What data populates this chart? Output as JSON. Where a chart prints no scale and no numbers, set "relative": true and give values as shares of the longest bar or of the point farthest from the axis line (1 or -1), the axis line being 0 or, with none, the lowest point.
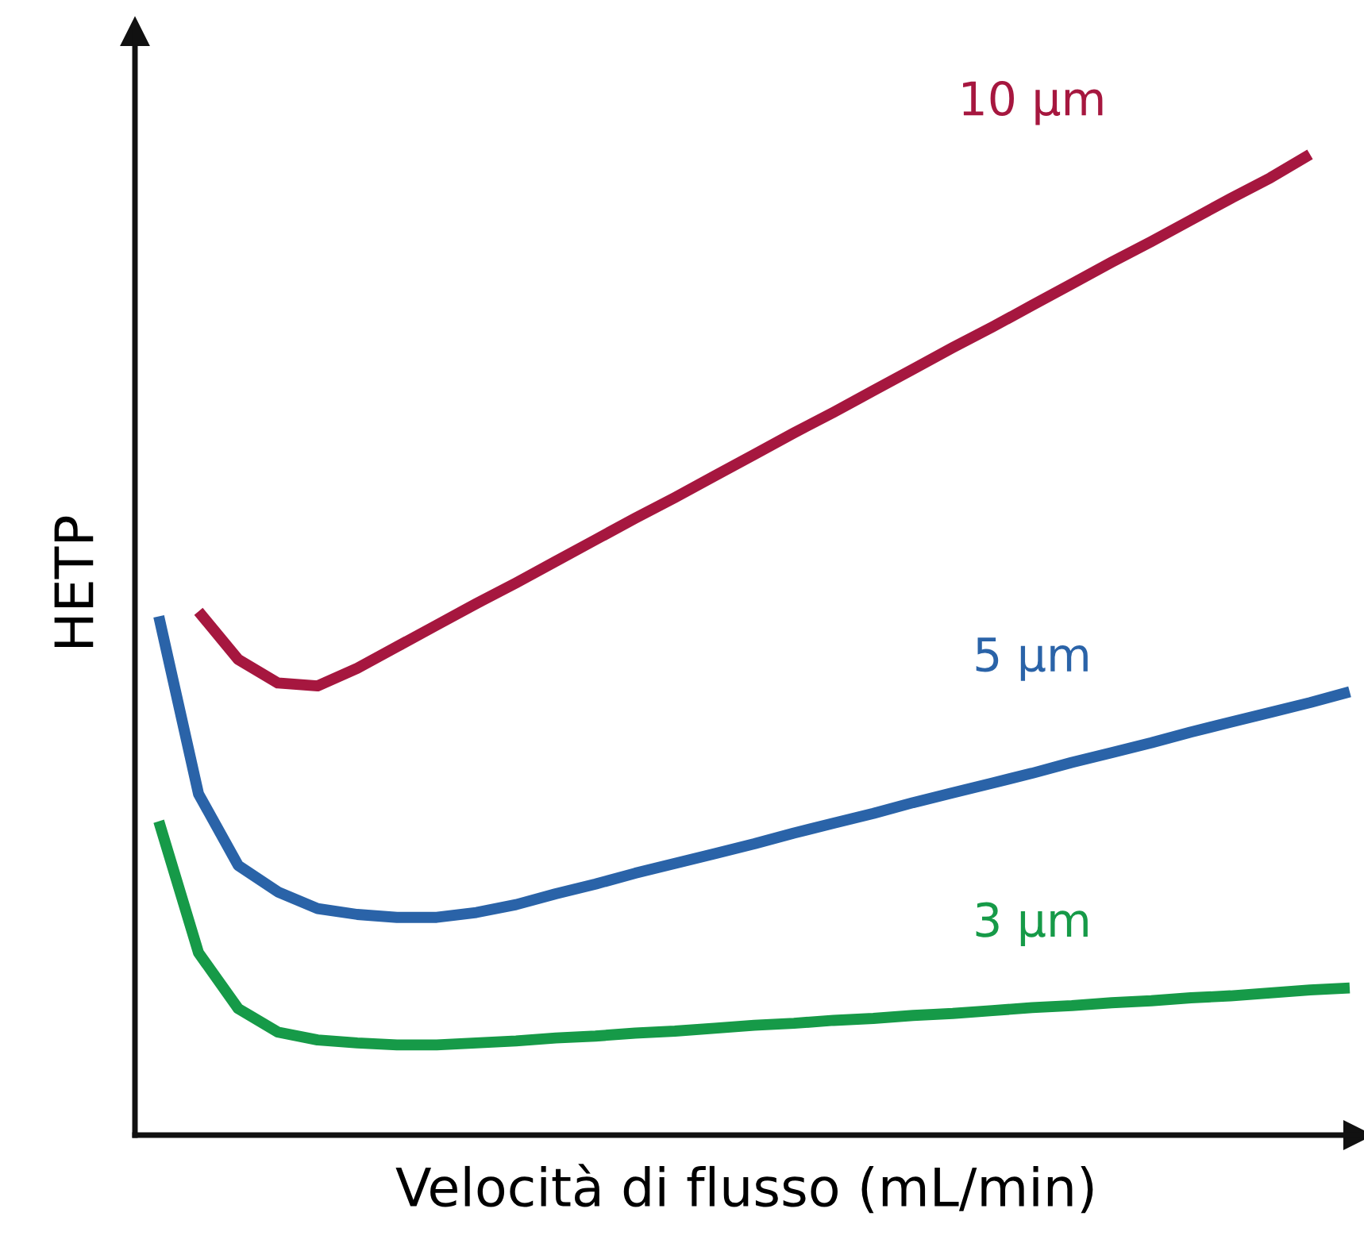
{
  "chart_data": {
    "type": "line",
    "relative": true,
    "xlabel": "Velocità di flusso (mL/min)",
    "ylabel": "HETP",
    "legend": false,
    "marker": "none",
    "line_style": "solid",
    "categories": [
      null,
      null,
      null,
      null,
      null,
      null,
      null,
      null,
      null,
      null,
      null,
      null,
      null,
      null,
      null,
      null,
      null,
      null,
      null,
      null,
      null,
      null,
      null,
      null,
      null,
      null,
      null,
      null,
      null,
      null,
      null
    ],
    "series": [
      {
        "name": "10 µm",
        "color": "#a6173f",
        "values": [
          null,
          0.534,
          0.485,
          0.461,
          0.458,
          0.476,
          0.498,
          0.52,
          0.542,
          0.563,
          0.585,
          0.607,
          0.629,
          0.65,
          0.672,
          0.694,
          0.716,
          0.737,
          0.759,
          0.781,
          0.803,
          0.824,
          0.846,
          0.868,
          0.89,
          0.911,
          0.933,
          0.955,
          0.976,
          1.0,
          null
        ]
      },
      {
        "name": "5 µm",
        "color": "#2a63a8",
        "values": [
          0.529,
          0.348,
          0.275,
          0.248,
          0.231,
          0.225,
          0.222,
          0.222,
          0.227,
          0.235,
          0.246,
          0.256,
          0.267,
          0.277,
          0.287,
          0.297,
          0.308,
          0.318,
          0.328,
          0.339,
          0.349,
          0.359,
          0.369,
          0.38,
          0.39,
          0.4,
          0.411,
          0.421,
          0.431,
          0.441,
          0.452
        ]
      },
      {
        "name": "3 µm",
        "color": "#169a48",
        "values": [
          0.32,
          0.186,
          0.129,
          0.105,
          0.097,
          0.094,
          0.092,
          0.092,
          0.094,
          0.096,
          0.099,
          0.101,
          0.104,
          0.106,
          0.109,
          0.112,
          0.114,
          0.117,
          0.119,
          0.122,
          0.124,
          0.127,
          0.13,
          0.132,
          0.135,
          0.137,
          0.14,
          0.142,
          0.145,
          0.148,
          0.15
        ]
      }
    ]
  }
}
